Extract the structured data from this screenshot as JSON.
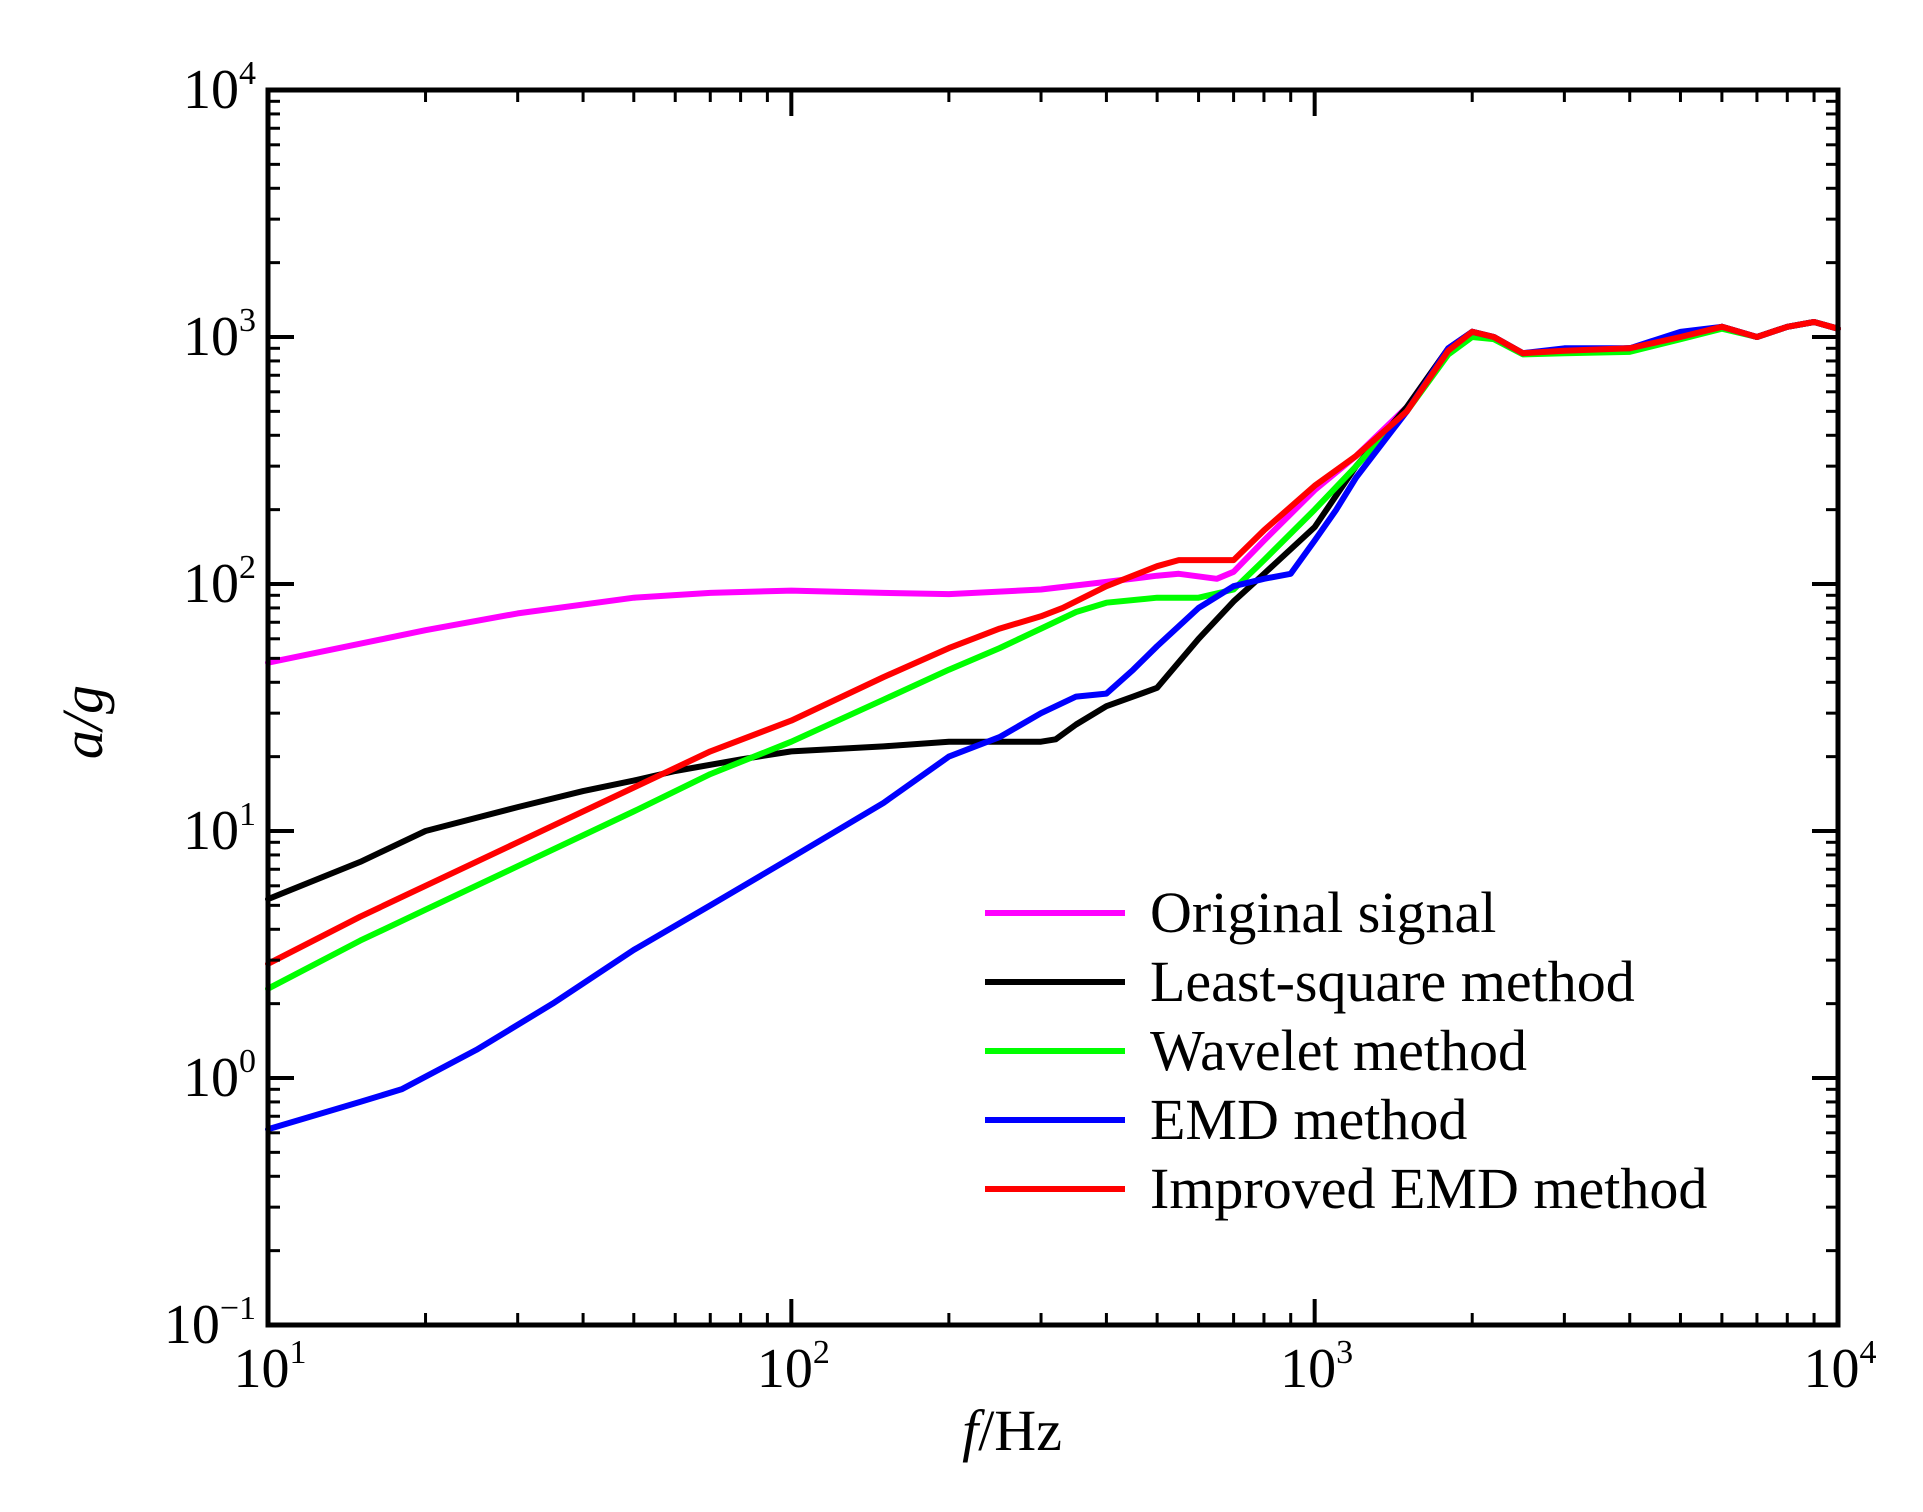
{
  "chart_data": {
    "type": "line",
    "title": "",
    "xlabel": {
      "italic": "f",
      "rest": "/Hz"
    },
    "ylabel": "a/g",
    "xscale": "log",
    "yscale": "log",
    "xlim": [
      10,
      10000
    ],
    "ylim": [
      0.1,
      10000
    ],
    "grid": false,
    "legend_position": "lower-right",
    "x_ticks": [
      {
        "value": 10,
        "base": "10",
        "exp": "1"
      },
      {
        "value": 100,
        "base": "10",
        "exp": "2"
      },
      {
        "value": 1000,
        "base": "10",
        "exp": "3"
      },
      {
        "value": 10000,
        "base": "10",
        "exp": "4"
      }
    ],
    "y_ticks": [
      {
        "value": 0.1,
        "base": "10",
        "exp": "−1"
      },
      {
        "value": 1,
        "base": "10",
        "exp": "0"
      },
      {
        "value": 10,
        "base": "10",
        "exp": "1"
      },
      {
        "value": 100,
        "base": "10",
        "exp": "2"
      },
      {
        "value": 1000,
        "base": "10",
        "exp": "3"
      },
      {
        "value": 10000,
        "base": "10",
        "exp": "4"
      }
    ],
    "series": [
      {
        "name": "Original signal",
        "color": "#ff00ff",
        "x": [
          10,
          20,
          30,
          50,
          70,
          100,
          150,
          200,
          300,
          400,
          500,
          550,
          650,
          700,
          800,
          1000,
          1200,
          1500,
          1800,
          2000,
          2200,
          2500,
          3000,
          4000,
          5000,
          6000,
          7000,
          8000,
          9000,
          10000
        ],
        "y": [
          48,
          65,
          76,
          88,
          92,
          94,
          92,
          91,
          95,
          102,
          108,
          110,
          105,
          112,
          150,
          240,
          330,
          520,
          900,
          1050,
          1000,
          860,
          880,
          900,
          1000,
          1100,
          1000,
          1100,
          1150,
          1080
        ]
      },
      {
        "name": "Least-square method",
        "color": "#000000",
        "x": [
          10,
          15,
          20,
          30,
          40,
          50,
          60,
          80,
          100,
          150,
          200,
          250,
          300,
          320,
          350,
          400,
          450,
          500,
          600,
          700,
          800,
          1000,
          1200,
          1500,
          1800,
          2000,
          2200,
          2500,
          3000,
          4000,
          5000,
          6000,
          7000,
          8000,
          9000,
          10000
        ],
        "y": [
          5.3,
          7.5,
          10,
          12.5,
          14.5,
          16,
          17.5,
          19.5,
          21,
          22,
          23,
          23,
          23,
          23.5,
          27,
          32,
          35,
          38,
          60,
          85,
          110,
          170,
          300,
          520,
          900,
          1050,
          1000,
          860,
          880,
          900,
          1000,
          1100,
          1000,
          1100,
          1150,
          1080
        ]
      },
      {
        "name": "Wavelet method",
        "color": "#00ff00",
        "x": [
          10,
          15,
          20,
          30,
          50,
          70,
          100,
          150,
          200,
          250,
          300,
          350,
          400,
          500,
          600,
          700,
          800,
          1000,
          1200,
          1500,
          1800,
          2000,
          2200,
          2500,
          3000,
          4000,
          5000,
          6000,
          7000,
          8000,
          9000,
          10000
        ],
        "y": [
          2.3,
          3.6,
          4.8,
          7.2,
          12,
          17,
          23,
          34,
          45,
          55,
          66,
          77,
          84,
          88,
          88,
          95,
          125,
          200,
          300,
          500,
          850,
          1000,
          980,
          850,
          860,
          870,
          980,
          1080,
          1000,
          1100,
          1150,
          1080
        ]
      },
      {
        "name": "EMD method",
        "color": "#0000ff",
        "x": [
          10,
          15,
          18,
          25,
          35,
          50,
          70,
          100,
          150,
          200,
          250,
          300,
          350,
          400,
          450,
          500,
          600,
          700,
          800,
          900,
          1000,
          1100,
          1200,
          1500,
          1800,
          2000,
          2200,
          2500,
          3000,
          4000,
          5000,
          6000,
          7000,
          8000,
          9000,
          10000
        ],
        "y": [
          0.62,
          0.8,
          0.9,
          1.3,
          2,
          3.3,
          5,
          7.8,
          13,
          20,
          24,
          30,
          35,
          36,
          45,
          56,
          80,
          98,
          105,
          110,
          150,
          200,
          270,
          500,
          900,
          1050,
          1000,
          860,
          900,
          900,
          1050,
          1100,
          1000,
          1100,
          1150,
          1080
        ]
      },
      {
        "name": "Improved EMD method",
        "color": "#ff0000",
        "x": [
          10,
          15,
          20,
          30,
          50,
          70,
          100,
          150,
          200,
          250,
          300,
          330,
          400,
          500,
          550,
          600,
          700,
          800,
          1000,
          1200,
          1500,
          1800,
          2000,
          2200,
          2500,
          3000,
          4000,
          5000,
          6000,
          7000,
          8000,
          9000,
          10000
        ],
        "y": [
          2.9,
          4.5,
          6,
          9,
          15,
          21,
          28,
          42,
          55,
          66,
          74,
          80,
          98,
          118,
          125,
          125,
          125,
          165,
          250,
          330,
          500,
          880,
          1050,
          1000,
          860,
          880,
          900,
          1000,
          1100,
          1000,
          1100,
          1150,
          1080
        ]
      }
    ]
  }
}
